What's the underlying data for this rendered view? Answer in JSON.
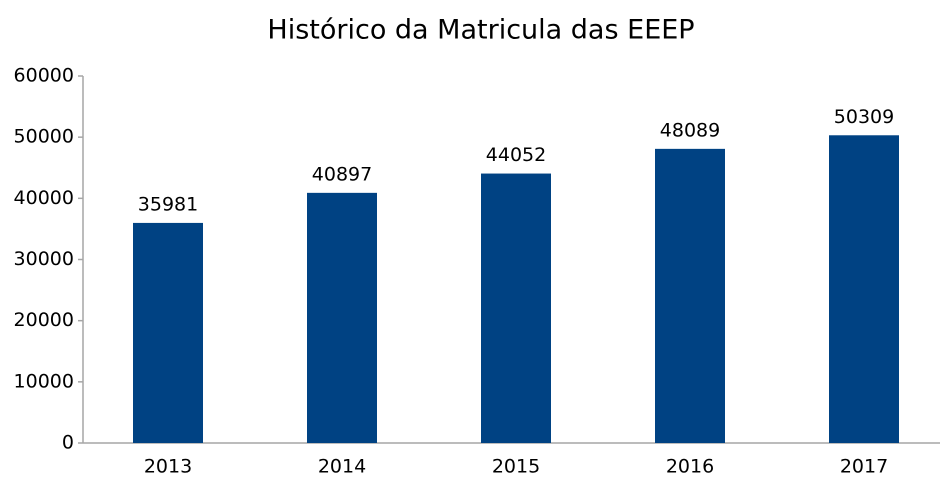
{
  "chart_data": {
    "type": "bar",
    "title": "Histórico da Matricula das EEEP",
    "categories": [
      "2013",
      "2014",
      "2015",
      "2016",
      "2017"
    ],
    "values": [
      35981,
      40897,
      44052,
      48089,
      50309
    ],
    "color": "#004283",
    "ylim": [
      0,
      60000
    ],
    "yticks": [
      0,
      10000,
      20000,
      30000,
      40000,
      50000,
      60000
    ],
    "grid": false,
    "data_labels": true
  }
}
